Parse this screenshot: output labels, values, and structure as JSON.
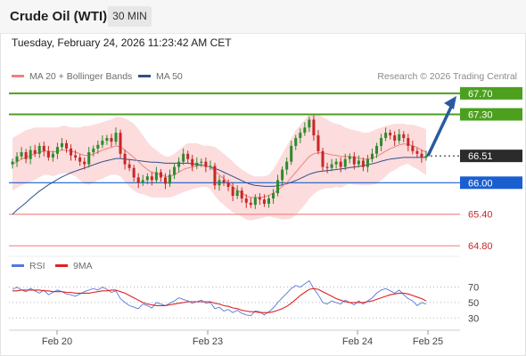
{
  "header": {
    "title": "Crude Oil (WTI)",
    "timeframe": "30 MIN",
    "datetime": "Tuesday, February 24, 2026 11:23:42 AM CET"
  },
  "legend": {
    "ma20_label": "MA 20 + Bollinger Bands",
    "ma50_label": "MA 50",
    "credit": "Research © 2026 Trading Central",
    "rsi_label": "RSI",
    "ma9_label": "9MA"
  },
  "colors": {
    "ma20": "#f08080",
    "ma50": "#2f4f8f",
    "band": "#fbd0d0",
    "up": "#2e8b2e",
    "down": "#c62828",
    "resistance": "#4ca01e",
    "support": "#f08a8a",
    "pivot": "#1a5fd0",
    "arrow": "#2a5aa0",
    "rsi": "#5577dd",
    "ma9": "#dd2222"
  },
  "chart_data": [
    {
      "type": "candlestick",
      "title": "",
      "ylim": [
        64.6,
        67.85
      ],
      "x_ticks": [
        "Feb 20",
        "Feb 23",
        "Feb 24",
        "Feb 25"
      ],
      "last_price": 66.51,
      "levels": [
        {
          "value": 67.7,
          "label": "67.70",
          "kind": "resistance"
        },
        {
          "value": 67.3,
          "label": "67.30",
          "kind": "resistance"
        },
        {
          "value": 66.51,
          "label": "66.51",
          "kind": "last"
        },
        {
          "value": 66.0,
          "label": "66.00",
          "kind": "pivot"
        },
        {
          "value": 65.4,
          "label": "65.40",
          "kind": "support"
        },
        {
          "value": 64.8,
          "label": "64.80",
          "kind": "support"
        }
      ],
      "forecast_target": 67.7,
      "price_series": [
        66.4,
        66.5,
        66.58,
        66.45,
        66.62,
        66.55,
        66.7,
        66.6,
        66.48,
        66.55,
        66.68,
        66.75,
        66.65,
        66.52,
        66.48,
        66.4,
        66.35,
        66.58,
        66.65,
        66.72,
        66.8,
        66.85,
        66.78,
        66.95,
        66.55,
        66.35,
        66.28,
        66.1,
        66.0,
        66.05,
        66.12,
        66.05,
        66.2,
        66.1,
        65.98,
        66.15,
        66.3,
        66.4,
        66.55,
        66.45,
        66.32,
        66.38,
        66.4,
        66.3,
        66.32,
        65.95,
        66.05,
        66.0,
        65.92,
        65.75,
        65.85,
        65.7,
        65.62,
        65.58,
        65.72,
        65.68,
        65.6,
        65.7,
        65.8,
        66.05,
        66.25,
        66.4,
        66.7,
        66.85,
        66.95,
        67.05,
        67.2,
        66.9,
        66.6,
        66.3,
        66.28,
        66.35,
        66.4,
        66.3,
        66.45,
        66.5,
        66.35,
        66.42,
        66.3,
        66.45,
        66.55,
        66.7,
        66.85,
        66.95,
        66.9,
        66.8,
        66.92,
        66.85,
        66.7,
        66.6,
        66.55,
        66.48,
        66.51
      ],
      "ma20": [
        66.35,
        66.4,
        66.45,
        66.48,
        66.52,
        66.55,
        66.58,
        66.6,
        66.6,
        66.58,
        66.6,
        66.62,
        66.62,
        66.6,
        66.58,
        66.55,
        66.52,
        66.52,
        66.55,
        66.58,
        66.62,
        66.65,
        66.67,
        66.7,
        66.68,
        66.62,
        66.55,
        66.48,
        66.4,
        66.32,
        66.25,
        66.2,
        66.18,
        66.15,
        66.12,
        66.12,
        66.15,
        66.2,
        66.25,
        66.28,
        66.3,
        66.32,
        66.33,
        66.32,
        66.3,
        66.22,
        66.15,
        66.08,
        66.0,
        65.92,
        65.86,
        65.8,
        65.75,
        65.72,
        65.72,
        65.72,
        65.73,
        65.76,
        65.8,
        65.86,
        65.93,
        66.0,
        66.1,
        66.2,
        66.3,
        66.4,
        66.5,
        66.55,
        66.57,
        66.57,
        66.55,
        66.53,
        66.52,
        66.5,
        66.5,
        66.5,
        66.48,
        66.47,
        66.45,
        66.45,
        66.47,
        66.5,
        66.55,
        66.6,
        66.65,
        66.68,
        66.72,
        66.74,
        66.73,
        66.7,
        66.67,
        66.62,
        66.58
      ],
      "bb_upper": [
        66.85,
        66.9,
        66.95,
        67.0,
        67.02,
        67.05,
        67.05,
        67.05,
        67.05,
        67.05,
        67.05,
        67.08,
        67.08,
        67.05,
        67.05,
        67.05,
        67.08,
        67.08,
        67.1,
        67.12,
        67.15,
        67.18,
        67.2,
        67.25,
        67.25,
        67.22,
        67.18,
        67.12,
        67.02,
        66.9,
        66.78,
        66.68,
        66.62,
        66.55,
        66.5,
        66.5,
        66.55,
        66.62,
        66.7,
        66.75,
        66.75,
        66.75,
        66.72,
        66.7,
        66.7,
        66.68,
        66.62,
        66.55,
        66.48,
        66.4,
        66.32,
        66.25,
        66.2,
        66.15,
        66.12,
        66.12,
        66.12,
        66.15,
        66.25,
        66.4,
        66.55,
        66.7,
        66.85,
        67.0,
        67.1,
        67.2,
        67.3,
        67.32,
        67.3,
        67.25,
        67.2,
        67.15,
        67.12,
        67.1,
        67.05,
        67.02,
        67.0,
        66.98,
        66.95,
        66.95,
        66.98,
        67.02,
        67.05,
        67.08,
        67.1,
        67.12,
        67.12,
        67.12,
        67.1,
        67.1,
        67.08,
        67.05,
        67.02
      ],
      "bb_lower": [
        65.85,
        65.9,
        65.95,
        65.98,
        66.02,
        66.05,
        66.1,
        66.15,
        66.15,
        66.12,
        66.15,
        66.18,
        66.18,
        66.15,
        66.12,
        66.05,
        65.98,
        65.96,
        66.0,
        66.05,
        66.08,
        66.12,
        66.15,
        66.15,
        66.12,
        66.02,
        65.92,
        65.85,
        65.8,
        65.78,
        65.75,
        65.72,
        65.72,
        65.72,
        65.72,
        65.72,
        65.75,
        65.78,
        65.82,
        65.85,
        65.88,
        65.9,
        65.92,
        65.92,
        65.88,
        65.75,
        65.65,
        65.58,
        65.5,
        65.44,
        65.4,
        65.35,
        65.3,
        65.28,
        65.3,
        65.32,
        65.34,
        65.36,
        65.34,
        65.32,
        65.3,
        65.3,
        65.32,
        65.38,
        65.48,
        65.58,
        65.7,
        65.78,
        65.85,
        65.88,
        65.9,
        65.9,
        65.92,
        65.9,
        65.95,
        65.98,
        65.96,
        65.96,
        65.95,
        65.95,
        65.96,
        65.98,
        66.05,
        66.12,
        66.2,
        66.24,
        66.3,
        66.34,
        66.36,
        66.3,
        66.26,
        66.2,
        66.14
      ],
      "ma50": [
        65.4,
        65.48,
        65.55,
        65.62,
        65.7,
        65.77,
        65.84,
        65.9,
        65.96,
        66.01,
        66.06,
        66.11,
        66.15,
        66.19,
        66.22,
        66.25,
        66.28,
        66.31,
        66.34,
        66.37,
        66.4,
        66.42,
        66.44,
        66.46,
        66.46,
        66.45,
        66.44,
        66.43,
        66.42,
        66.41,
        66.4,
        66.39,
        66.39,
        66.38,
        66.37,
        66.37,
        66.37,
        66.37,
        66.37,
        66.37,
        66.36,
        66.35,
        66.34,
        66.32,
        66.3,
        66.27,
        66.24,
        66.2,
        66.16,
        66.12,
        66.08,
        66.04,
        66.0,
        65.97,
        65.95,
        65.94,
        65.93,
        65.93,
        65.93,
        65.94,
        65.96,
        65.98,
        66.01,
        66.04,
        66.08,
        66.12,
        66.16,
        66.19,
        66.21,
        66.22,
        66.23,
        66.24,
        66.25,
        66.26,
        66.27,
        66.29,
        66.3,
        66.31,
        66.32,
        66.34,
        66.36,
        66.38,
        66.41,
        66.43,
        66.45,
        66.46,
        66.47,
        66.48,
        66.48,
        66.48,
        66.48,
        66.48,
        66.48
      ]
    },
    {
      "type": "line",
      "title": "",
      "series": [
        {
          "name": "RSI",
          "values": [
            67,
            70,
            66,
            64,
            68,
            65,
            62,
            66,
            60,
            63,
            66,
            64,
            61,
            60,
            58,
            61,
            64,
            66,
            68,
            66,
            70,
            67,
            63,
            65,
            55,
            50,
            46,
            44,
            42,
            48,
            46,
            43,
            50,
            48,
            46,
            49,
            52,
            56,
            54,
            52,
            49,
            51,
            53,
            49,
            50,
            42,
            44,
            39,
            41,
            37,
            40,
            36,
            34,
            33,
            39,
            38,
            34,
            38,
            43,
            50,
            56,
            62,
            68,
            72,
            70,
            74,
            78,
            68,
            60,
            50,
            48,
            52,
            50,
            48,
            53,
            50,
            47,
            52,
            48,
            52,
            56,
            62,
            66,
            68,
            65,
            62,
            66,
            60,
            55,
            52,
            46,
            50,
            48
          ]
        },
        {
          "name": "9MA",
          "values": [
            65,
            65,
            66,
            66,
            66,
            66,
            66,
            65,
            65,
            64,
            64,
            64,
            63,
            63,
            62,
            62,
            62,
            62,
            63,
            64,
            65,
            65,
            66,
            66,
            64,
            62,
            59,
            56,
            53,
            50,
            48,
            47,
            46,
            46,
            46,
            47,
            48,
            49,
            50,
            51,
            51,
            51,
            51,
            51,
            51,
            49,
            48,
            46,
            45,
            43,
            42,
            40,
            39,
            38,
            38,
            37,
            37,
            37,
            38,
            40,
            42,
            45,
            49,
            54,
            59,
            63,
            67,
            68,
            67,
            64,
            61,
            58,
            55,
            53,
            51,
            50,
            50,
            50,
            50,
            51,
            52,
            54,
            56,
            58,
            60,
            61,
            62,
            62,
            61,
            59,
            57,
            55,
            52
          ]
        }
      ],
      "ylim": [
        20,
        82
      ],
      "y_ticks": [
        70,
        50,
        30
      ],
      "x_ticks": [
        "Feb 20",
        "Feb 23",
        "Feb 24",
        "Feb 25"
      ]
    }
  ]
}
